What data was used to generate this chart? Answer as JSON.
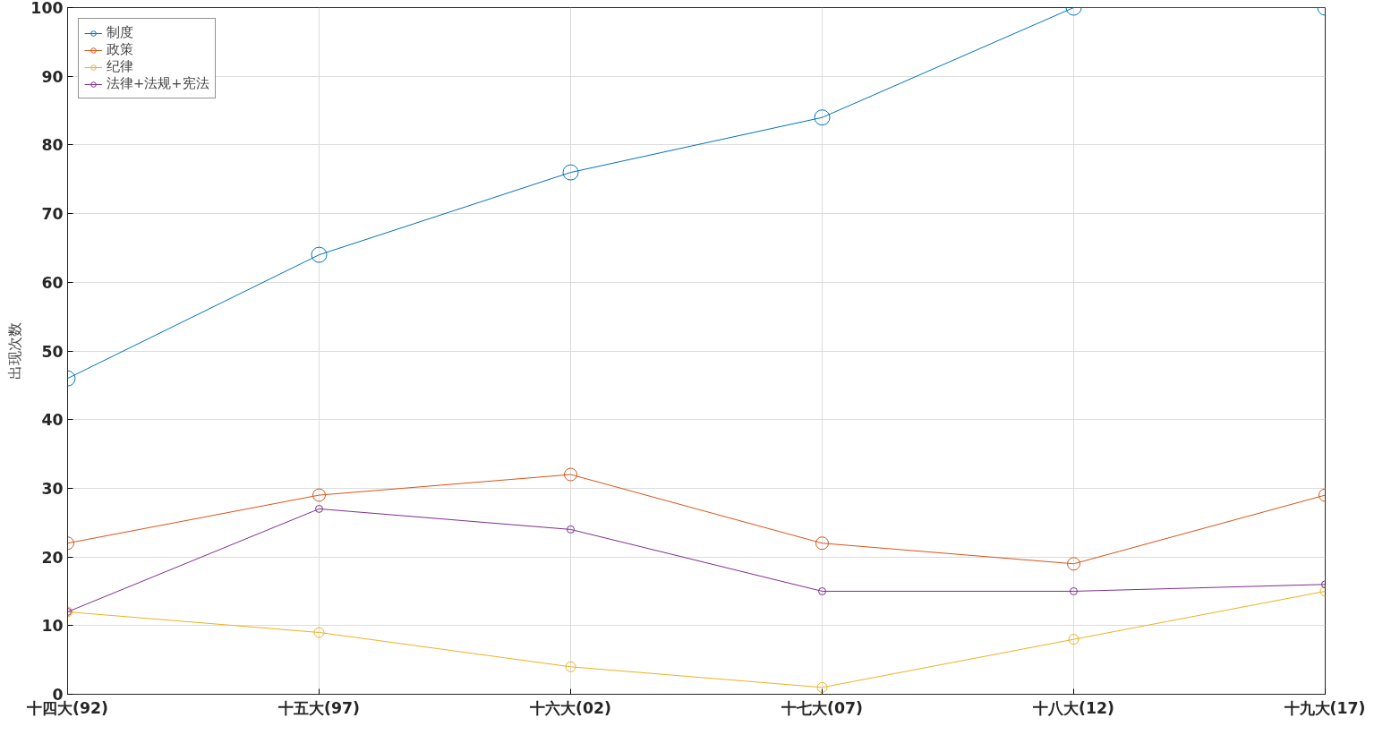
{
  "chart_data": {
    "type": "line",
    "ylabel": "出现次数",
    "categories": [
      "十四大(92)",
      "十五大(97)",
      "十六大(02)",
      "十七大(07)",
      "十八大(12)",
      "十九大(17)"
    ],
    "series": [
      {
        "name": "制度",
        "color": "#0072bd",
        "values": [
          46,
          64,
          76,
          84,
          100,
          100
        ]
      },
      {
        "name": "政策",
        "color": "#d95319",
        "values": [
          22,
          29,
          32,
          22,
          19,
          29
        ]
      },
      {
        "name": "纪律",
        "color": "#edb120",
        "values": [
          12,
          9,
          4,
          1,
          8,
          15
        ]
      },
      {
        "name": "法律+法规+宪法",
        "color": "#7e2f8e",
        "values": [
          12,
          27,
          24,
          15,
          15,
          16
        ]
      }
    ],
    "ylim": [
      0,
      100
    ],
    "yticks": [
      0,
      10,
      20,
      30,
      40,
      50,
      60,
      70,
      80,
      90,
      100
    ],
    "grid": true,
    "legend": "top left",
    "marker": "circle",
    "line_style": "solid"
  }
}
